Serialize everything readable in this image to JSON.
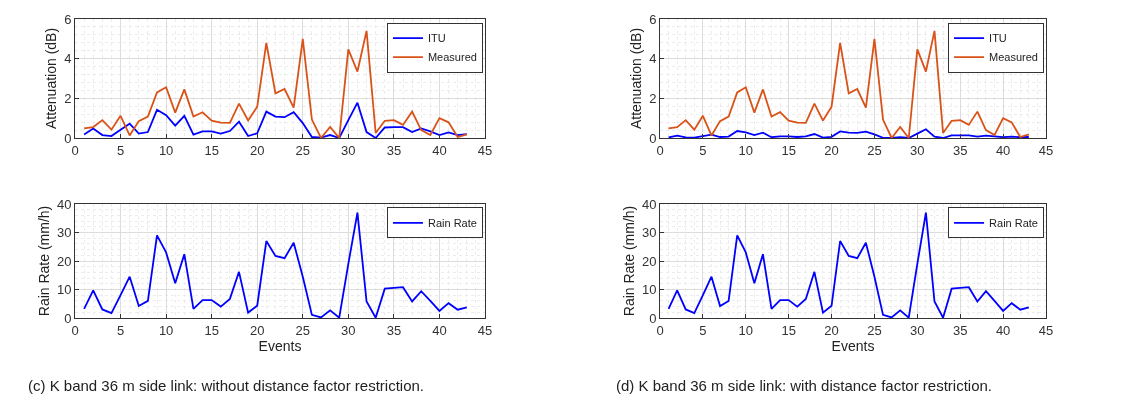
{
  "chart_data": [
    {
      "type": "line",
      "ylabel": "Attenuation (dB)",
      "x": [
        1,
        2,
        3,
        4,
        5,
        6,
        7,
        8,
        9,
        10,
        11,
        12,
        13,
        14,
        15,
        16,
        17,
        18,
        19,
        20,
        21,
        22,
        23,
        24,
        25,
        26,
        27,
        28,
        29,
        30,
        31,
        32,
        33,
        34,
        35,
        36,
        37,
        38,
        39,
        40,
        41,
        42,
        43
      ],
      "xlim": [
        0,
        45
      ],
      "xticks": [
        0,
        5,
        10,
        15,
        20,
        25,
        30,
        35,
        40,
        45
      ],
      "ylim": [
        0,
        6
      ],
      "yticks": [
        0,
        2,
        4,
        6
      ],
      "grid": true,
      "legend": "top right",
      "series": [
        {
          "name": "ITU",
          "color": "#0000ff",
          "values": [
            0.18,
            0.48,
            0.15,
            0.1,
            0.42,
            0.72,
            0.22,
            0.3,
            1.42,
            1.15,
            0.62,
            1.12,
            0.17,
            0.33,
            0.33,
            0.22,
            0.35,
            0.82,
            0.1,
            0.24,
            1.33,
            1.08,
            1.05,
            1.3,
            0.75,
            0.05,
            0.02,
            0.15,
            0,
            0.9,
            1.78,
            0.3,
            0,
            0.53,
            0.55,
            0.55,
            0.3,
            0.48,
            0.33,
            0.15,
            0.28,
            0.15,
            0.2
          ]
        },
        {
          "name": "Measured",
          "color": "#d95319",
          "values": [
            0.48,
            0.55,
            0.9,
            0.42,
            1.12,
            0.13,
            0.85,
            1.08,
            2.3,
            2.56,
            1.28,
            2.45,
            1.08,
            1.3,
            0.87,
            0.78,
            0.76,
            1.73,
            0.88,
            1.58,
            4.8,
            2.25,
            2.47,
            1.53,
            5.0,
            0.93,
            0,
            0.56,
            0,
            4.47,
            3.35,
            5.4,
            0.25,
            0.87,
            0.9,
            0.66,
            1.33,
            0.4,
            0.15,
            1.0,
            0.79,
            0.05,
            0.18
          ]
        }
      ]
    },
    {
      "type": "line",
      "ylabel": "Attenuation (dB)",
      "x": [
        1,
        2,
        3,
        4,
        5,
        6,
        7,
        8,
        9,
        10,
        11,
        12,
        13,
        14,
        15,
        16,
        17,
        18,
        19,
        20,
        21,
        22,
        23,
        24,
        25,
        26,
        27,
        28,
        29,
        30,
        31,
        32,
        33,
        34,
        35,
        36,
        37,
        38,
        39,
        40,
        41,
        42,
        43
      ],
      "xlim": [
        0,
        45
      ],
      "xticks": [
        0,
        5,
        10,
        15,
        20,
        25,
        30,
        35,
        40,
        45
      ],
      "ylim": [
        0,
        6
      ],
      "yticks": [
        0,
        2,
        4,
        6
      ],
      "grid": true,
      "legend": "top right",
      "series": [
        {
          "name": "ITU",
          "color": "#0000ff",
          "values": [
            0.03,
            0.12,
            0.03,
            0.02,
            0.1,
            0.17,
            0.05,
            0.07,
            0.35,
            0.28,
            0.15,
            0.27,
            0.04,
            0.08,
            0.08,
            0.05,
            0.08,
            0.2,
            0.02,
            0.06,
            0.33,
            0.27,
            0.26,
            0.32,
            0.18,
            0.01,
            0,
            0.04,
            0,
            0.22,
            0.44,
            0.07,
            0,
            0.13,
            0.13,
            0.13,
            0.07,
            0.12,
            0.08,
            0.04,
            0.07,
            0.04,
            0.05
          ]
        },
        {
          "name": "Measured",
          "color": "#d95319",
          "values": [
            0.48,
            0.55,
            0.9,
            0.42,
            1.12,
            0.13,
            0.85,
            1.08,
            2.3,
            2.56,
            1.28,
            2.45,
            1.08,
            1.3,
            0.87,
            0.78,
            0.76,
            1.73,
            0.88,
            1.58,
            4.8,
            2.25,
            2.47,
            1.53,
            5.0,
            0.93,
            0,
            0.56,
            0,
            4.47,
            3.35,
            5.4,
            0.25,
            0.87,
            0.9,
            0.66,
            1.33,
            0.4,
            0.15,
            1.0,
            0.79,
            0.05,
            0.18
          ]
        }
      ]
    },
    {
      "type": "line",
      "xlabel": "Events",
      "ylabel": "Rain Rate (mm/h)",
      "annotations": [
        "(c) K band 36 m side link: without distance factor restriction."
      ],
      "x": [
        1,
        2,
        3,
        4,
        5,
        6,
        7,
        8,
        9,
        10,
        11,
        12,
        13,
        14,
        15,
        16,
        17,
        18,
        19,
        20,
        21,
        22,
        23,
        24,
        25,
        26,
        27,
        28,
        29,
        30,
        31,
        32,
        33,
        34,
        35,
        36,
        37,
        38,
        39,
        40,
        41,
        42,
        43
      ],
      "xlim": [
        0,
        45
      ],
      "xticks": [
        0,
        5,
        10,
        15,
        20,
        25,
        30,
        35,
        40,
        45
      ],
      "ylim": [
        0,
        40
      ],
      "yticks": [
        0,
        10,
        20,
        30,
        40
      ],
      "grid": true,
      "legend": "top right",
      "series": [
        {
          "name": "Rain Rate",
          "color": "#0000ff",
          "values": [
            3.2,
            9.7,
            3,
            1.7,
            8,
            14.5,
            4.2,
            6,
            29,
            23,
            12.2,
            22.4,
            3.2,
            6.3,
            6.3,
            4,
            6.7,
            16.2,
            1.9,
            4.3,
            27,
            21.8,
            21,
            26.4,
            14.5,
            1.1,
            0.2,
            2.7,
            0.1,
            19,
            37,
            5.8,
            0.1,
            10.3,
            10.6,
            10.8,
            5.8,
            9.4,
            6,
            2.5,
            5.2,
            2.9,
            3.7
          ]
        }
      ]
    },
    {
      "type": "line",
      "xlabel": "Events",
      "ylabel": "Rain Rate (mm/h)",
      "annotations": [
        "(d) K band 36 m side link: with distance factor restriction."
      ],
      "x": [
        1,
        2,
        3,
        4,
        5,
        6,
        7,
        8,
        9,
        10,
        11,
        12,
        13,
        14,
        15,
        16,
        17,
        18,
        19,
        20,
        21,
        22,
        23,
        24,
        25,
        26,
        27,
        28,
        29,
        30,
        31,
        32,
        33,
        34,
        35,
        36,
        37,
        38,
        39,
        40,
        41,
        42,
        43
      ],
      "xlim": [
        0,
        45
      ],
      "xticks": [
        0,
        5,
        10,
        15,
        20,
        25,
        30,
        35,
        40,
        45
      ],
      "ylim": [
        0,
        40
      ],
      "yticks": [
        0,
        10,
        20,
        30,
        40
      ],
      "grid": true,
      "legend": "top right",
      "series": [
        {
          "name": "Rain Rate",
          "color": "#0000ff",
          "values": [
            3.2,
            9.7,
            3,
            1.7,
            8,
            14.5,
            4.2,
            6,
            29,
            23,
            12.2,
            22.4,
            3.2,
            6.3,
            6.3,
            4,
            6.7,
            16.2,
            1.9,
            4.3,
            27,
            21.8,
            21,
            26.4,
            14.5,
            1.1,
            0.2,
            2.7,
            0.1,
            19,
            37,
            5.8,
            0.1,
            10.3,
            10.6,
            10.8,
            5.8,
            9.4,
            6,
            2.5,
            5.2,
            2.9,
            3.7
          ]
        }
      ]
    }
  ]
}
